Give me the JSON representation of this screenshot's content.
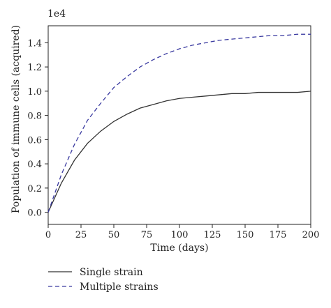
{
  "chart_data": {
    "type": "line",
    "y_offset_label": "1e4",
    "x_label": "Time (days)",
    "y_label": "Population of immune cells (acquired)",
    "x": [
      0,
      10,
      20,
      30,
      40,
      50,
      60,
      70,
      80,
      90,
      100,
      110,
      120,
      130,
      140,
      150,
      160,
      170,
      180,
      190,
      200
    ],
    "series": [
      {
        "name": "Single strain",
        "color": "#333333",
        "linestyle": "solid",
        "values": [
          0,
          0.24,
          0.43,
          0.57,
          0.67,
          0.75,
          0.81,
          0.86,
          0.89,
          0.92,
          0.94,
          0.95,
          0.96,
          0.97,
          0.98,
          0.98,
          0.99,
          0.99,
          0.99,
          0.99,
          1.0
        ]
      },
      {
        "name": "Multiple strains",
        "color": "#3a3aa0",
        "linestyle": "dashed",
        "values": [
          0,
          0.31,
          0.56,
          0.76,
          0.9,
          1.03,
          1.12,
          1.2,
          1.26,
          1.31,
          1.35,
          1.38,
          1.4,
          1.42,
          1.43,
          1.44,
          1.45,
          1.46,
          1.46,
          1.47,
          1.47
        ]
      }
    ],
    "xlim": [
      0,
      200
    ],
    "xticks": [
      0,
      25,
      50,
      75,
      100,
      125,
      150,
      175,
      200
    ],
    "ylim": [
      -0.1,
      1.54
    ],
    "yticks": [
      {
        "value": 0,
        "label": "0.0"
      },
      0.2,
      0.4,
      0.6,
      0.8,
      {
        "value": 1,
        "label": "1.0"
      },
      1.2,
      1.4
    ],
    "legend": "below-left"
  }
}
